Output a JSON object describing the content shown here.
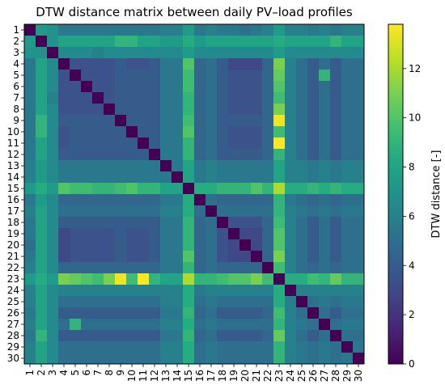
{
  "chart_data": {
    "type": "heatmap",
    "title": "DTW distance matrix between daily PV–load profiles",
    "row_labels": [
      "1",
      "2",
      "3",
      "4",
      "5",
      "6",
      "7",
      "8",
      "9",
      "10",
      "11",
      "12",
      "13",
      "14",
      "15",
      "16",
      "17",
      "18",
      "19",
      "20",
      "21",
      "22",
      "23",
      "24",
      "25",
      "26",
      "27",
      "28",
      "29",
      "30"
    ],
    "col_labels": [
      "1",
      "2",
      "3",
      "4",
      "5",
      "6",
      "7",
      "8",
      "9",
      "10",
      "11",
      "12",
      "13",
      "14",
      "15",
      "16",
      "17",
      "18",
      "19",
      "20",
      "21",
      "22",
      "23",
      "24",
      "25",
      "26",
      "27",
      "28",
      "29",
      "30"
    ],
    "colormap": "viridis",
    "colorbar": {
      "label": "DTW distance [-]",
      "range": [
        0,
        13.8
      ],
      "ticks": [
        "0",
        "2",
        "4",
        "6",
        "8",
        "10",
        "12"
      ]
    },
    "values": [
      [
        0,
        7.5,
        7.0,
        5.5,
        5.5,
        5.5,
        5.5,
        5.5,
        5.5,
        5.5,
        5.5,
        5.5,
        6.0,
        6.0,
        7.5,
        5.5,
        6.0,
        5.5,
        5.5,
        5.0,
        5.5,
        6.0,
        7.5,
        6.0,
        6.0,
        5.5,
        6.0,
        5.5,
        6.0,
        6.0
      ],
      [
        7.5,
        0,
        7.0,
        8.0,
        8.0,
        8.0,
        8.0,
        8.0,
        9.0,
        9.0,
        8.0,
        8.0,
        7.5,
        7.5,
        8.5,
        7.5,
        8.0,
        8.0,
        8.0,
        8.0,
        8.0,
        8.0,
        8.5,
        8.0,
        8.0,
        8.0,
        8.0,
        9.0,
        8.0,
        8.0
      ],
      [
        7.0,
        7.0,
        0,
        6.5,
        6.5,
        6.5,
        6.0,
        6.5,
        6.5,
        6.5,
        6.5,
        6.5,
        6.5,
        6.5,
        7.5,
        6.5,
        6.5,
        6.5,
        6.5,
        6.5,
        6.5,
        6.5,
        7.5,
        6.5,
        6.5,
        6.5,
        6.5,
        6.5,
        6.5,
        6.5
      ],
      [
        5.5,
        8.0,
        6.5,
        0,
        3.5,
        3.5,
        3.5,
        3.5,
        4.0,
        3.5,
        3.5,
        4.0,
        5.5,
        5.5,
        10.0,
        4.5,
        5.0,
        4.0,
        3.0,
        3.0,
        3.0,
        4.5,
        11.0,
        6.0,
        5.0,
        4.0,
        5.0,
        4.0,
        5.0,
        5.0
      ],
      [
        5.5,
        8.0,
        6.5,
        3.5,
        0,
        3.5,
        3.5,
        3.5,
        4.0,
        4.0,
        4.0,
        4.0,
        5.5,
        5.5,
        9.5,
        4.5,
        5.0,
        4.0,
        3.5,
        3.5,
        3.5,
        4.5,
        10.5,
        6.0,
        5.0,
        4.0,
        9.0,
        4.0,
        5.0,
        5.0
      ],
      [
        5.5,
        8.0,
        6.5,
        3.5,
        3.5,
        0,
        3.5,
        3.5,
        4.0,
        4.0,
        4.0,
        4.0,
        5.5,
        5.5,
        9.5,
        4.5,
        5.0,
        4.0,
        3.5,
        3.5,
        3.5,
        4.5,
        10.0,
        6.0,
        5.0,
        4.0,
        5.0,
        4.0,
        5.0,
        5.0
      ],
      [
        5.5,
        8.0,
        6.0,
        3.5,
        3.5,
        3.5,
        0,
        3.5,
        4.0,
        4.0,
        4.0,
        4.0,
        5.5,
        5.5,
        9.0,
        4.5,
        5.0,
        4.0,
        3.5,
        3.5,
        3.5,
        4.5,
        9.5,
        6.0,
        5.0,
        4.0,
        5.0,
        4.0,
        5.0,
        5.0
      ],
      [
        5.5,
        8.0,
        6.5,
        3.5,
        3.5,
        3.5,
        3.5,
        0,
        4.0,
        4.0,
        4.0,
        4.0,
        5.5,
        5.5,
        9.0,
        4.5,
        5.0,
        4.0,
        3.5,
        3.5,
        3.5,
        4.5,
        11.0,
        6.0,
        5.0,
        4.0,
        5.0,
        4.0,
        5.0,
        5.0
      ],
      [
        5.5,
        9.0,
        6.5,
        4.0,
        4.0,
        4.0,
        4.0,
        4.0,
        0,
        4.0,
        4.0,
        4.0,
        5.5,
        5.5,
        9.5,
        4.5,
        5.0,
        4.0,
        4.0,
        4.0,
        4.0,
        4.5,
        13.5,
        6.0,
        5.0,
        4.0,
        5.0,
        4.0,
        5.0,
        5.0
      ],
      [
        5.5,
        9.0,
        6.5,
        3.5,
        4.0,
        4.0,
        4.0,
        4.0,
        4.0,
        0,
        4.0,
        4.0,
        5.5,
        5.5,
        10.0,
        4.5,
        5.0,
        4.0,
        3.5,
        3.5,
        3.5,
        4.5,
        9.5,
        6.0,
        5.0,
        4.0,
        5.0,
        4.0,
        5.0,
        5.0
      ],
      [
        5.5,
        8.0,
        6.5,
        3.5,
        4.0,
        4.0,
        4.0,
        4.0,
        4.0,
        4.0,
        0,
        4.0,
        5.5,
        5.5,
        9.0,
        4.5,
        5.0,
        4.0,
        3.5,
        3.5,
        3.5,
        4.5,
        13.8,
        6.0,
        5.0,
        4.0,
        5.0,
        4.0,
        5.0,
        5.0
      ],
      [
        5.5,
        8.0,
        6.5,
        4.0,
        4.0,
        4.0,
        4.0,
        4.0,
        4.0,
        4.0,
        4.0,
        0,
        5.5,
        5.5,
        9.0,
        4.5,
        5.0,
        4.0,
        4.0,
        4.0,
        4.0,
        4.5,
        9.0,
        6.0,
        5.0,
        4.0,
        5.0,
        4.0,
        5.0,
        5.0
      ],
      [
        6.0,
        7.5,
        6.5,
        5.5,
        5.5,
        5.5,
        5.5,
        5.5,
        5.5,
        5.5,
        5.5,
        5.5,
        0,
        5.5,
        8.0,
        5.5,
        6.0,
        5.5,
        5.5,
        5.5,
        5.5,
        5.5,
        8.0,
        6.0,
        6.0,
        5.5,
        6.0,
        5.5,
        6.0,
        6.0
      ],
      [
        6.0,
        7.5,
        6.5,
        5.5,
        5.5,
        5.5,
        5.5,
        5.5,
        5.5,
        5.5,
        5.5,
        5.5,
        5.5,
        0,
        8.0,
        5.5,
        6.0,
        5.5,
        5.5,
        5.5,
        5.5,
        5.5,
        8.0,
        6.0,
        6.0,
        5.5,
        6.0,
        5.5,
        6.0,
        6.0
      ],
      [
        7.5,
        8.5,
        7.5,
        10.0,
        9.5,
        9.5,
        9.0,
        9.0,
        9.5,
        10.0,
        9.0,
        9.0,
        8.0,
        8.0,
        0,
        8.5,
        8.5,
        9.0,
        9.0,
        9.0,
        10.0,
        9.0,
        12.0,
        8.5,
        8.5,
        9.0,
        8.5,
        9.0,
        8.5,
        8.5
      ],
      [
        5.5,
        7.5,
        6.5,
        4.5,
        4.5,
        4.5,
        4.5,
        4.5,
        4.5,
        4.5,
        4.5,
        4.5,
        5.5,
        5.5,
        8.5,
        0,
        5.0,
        4.5,
        4.5,
        4.5,
        4.5,
        4.5,
        9.0,
        5.5,
        5.0,
        4.5,
        5.0,
        4.5,
        5.0,
        5.0
      ],
      [
        6.0,
        8.0,
        6.5,
        5.0,
        5.0,
        5.0,
        5.0,
        5.0,
        5.0,
        5.0,
        5.0,
        5.0,
        6.0,
        6.0,
        8.5,
        5.0,
        0,
        5.0,
        5.0,
        5.0,
        5.0,
        5.0,
        9.0,
        6.0,
        5.5,
        5.0,
        5.5,
        5.0,
        5.5,
        5.5
      ],
      [
        5.5,
        8.0,
        6.5,
        4.0,
        4.0,
        4.0,
        4.0,
        4.0,
        4.0,
        4.0,
        4.0,
        4.0,
        5.5,
        5.5,
        9.0,
        4.5,
        5.0,
        0,
        3.5,
        3.5,
        3.5,
        4.5,
        9.5,
        6.0,
        5.0,
        4.0,
        5.0,
        4.0,
        5.0,
        5.0
      ],
      [
        5.5,
        8.0,
        6.5,
        3.0,
        3.5,
        3.5,
        3.5,
        3.5,
        4.0,
        3.5,
        3.5,
        4.0,
        5.5,
        5.5,
        9.0,
        4.5,
        5.0,
        3.5,
        0,
        3.0,
        3.0,
        4.5,
        10.0,
        6.0,
        5.0,
        4.0,
        5.0,
        4.0,
        5.0,
        5.0
      ],
      [
        5.0,
        8.0,
        6.5,
        3.0,
        3.5,
        3.5,
        3.5,
        3.5,
        4.0,
        3.5,
        3.5,
        4.0,
        5.5,
        5.5,
        9.0,
        4.5,
        5.0,
        3.5,
        3.0,
        0,
        3.0,
        4.5,
        10.0,
        6.0,
        5.0,
        4.0,
        5.0,
        4.0,
        5.0,
        5.0
      ],
      [
        5.5,
        8.0,
        6.5,
        3.0,
        3.5,
        3.5,
        3.5,
        3.5,
        4.0,
        3.5,
        3.5,
        4.0,
        5.5,
        5.5,
        10.0,
        4.5,
        5.0,
        3.5,
        3.0,
        3.0,
        0,
        4.5,
        11.0,
        6.0,
        5.0,
        4.0,
        5.0,
        4.0,
        5.0,
        5.0
      ],
      [
        6.0,
        8.0,
        6.5,
        4.5,
        4.5,
        4.5,
        4.5,
        4.5,
        4.5,
        4.5,
        4.5,
        4.5,
        5.5,
        5.5,
        9.0,
        4.5,
        5.0,
        4.5,
        4.5,
        4.5,
        4.5,
        0,
        9.5,
        6.0,
        5.0,
        4.5,
        5.0,
        4.5,
        5.0,
        5.0
      ],
      [
        7.5,
        8.5,
        7.5,
        11.0,
        10.5,
        10.0,
        9.5,
        11.0,
        13.5,
        9.5,
        13.8,
        9.0,
        8.0,
        8.0,
        12.0,
        9.0,
        9.0,
        9.5,
        10.0,
        10.0,
        11.0,
        9.5,
        0,
        8.5,
        8.5,
        9.5,
        9.0,
        10.5,
        9.0,
        9.0
      ],
      [
        6.0,
        8.0,
        6.5,
        6.0,
        6.0,
        6.0,
        6.0,
        6.0,
        6.0,
        6.0,
        6.0,
        6.0,
        6.0,
        6.0,
        8.5,
        5.5,
        6.0,
        6.0,
        6.0,
        6.0,
        6.0,
        6.0,
        8.5,
        0,
        6.0,
        6.0,
        6.0,
        6.0,
        6.0,
        6.0
      ],
      [
        6.0,
        8.0,
        6.5,
        5.0,
        5.0,
        5.0,
        5.0,
        5.0,
        5.0,
        5.0,
        5.0,
        5.0,
        6.0,
        6.0,
        8.5,
        5.0,
        5.5,
        5.0,
        5.0,
        5.0,
        5.0,
        5.0,
        8.5,
        6.0,
        0,
        5.0,
        5.5,
        5.0,
        5.5,
        5.5
      ],
      [
        5.5,
        8.0,
        6.5,
        4.0,
        4.0,
        4.0,
        4.0,
        4.0,
        4.0,
        4.0,
        4.0,
        4.0,
        5.5,
        5.5,
        9.0,
        4.5,
        5.0,
        4.0,
        4.0,
        4.0,
        4.0,
        4.5,
        9.5,
        6.0,
        5.0,
        0,
        5.0,
        4.0,
        5.0,
        5.0
      ],
      [
        6.0,
        8.0,
        6.5,
        5.0,
        9.0,
        5.0,
        5.0,
        5.0,
        5.0,
        5.0,
        5.0,
        5.0,
        6.0,
        6.0,
        8.5,
        5.0,
        5.5,
        5.0,
        5.0,
        5.0,
        5.0,
        5.0,
        9.0,
        6.0,
        5.5,
        5.0,
        0,
        5.0,
        5.5,
        5.5
      ],
      [
        5.5,
        9.0,
        6.5,
        4.0,
        4.0,
        4.0,
        4.0,
        4.0,
        4.0,
        4.0,
        4.0,
        4.0,
        5.5,
        5.5,
        9.0,
        4.5,
        5.0,
        4.0,
        4.0,
        4.0,
        4.0,
        4.5,
        10.5,
        6.0,
        5.0,
        4.0,
        5.0,
        0,
        5.0,
        5.0
      ],
      [
        6.0,
        8.0,
        6.5,
        5.0,
        5.0,
        5.0,
        5.0,
        5.0,
        5.0,
        5.0,
        5.0,
        5.0,
        6.0,
        6.0,
        8.5,
        5.0,
        5.5,
        5.0,
        5.0,
        5.0,
        5.0,
        5.0,
        9.0,
        6.0,
        5.5,
        5.0,
        5.5,
        5.0,
        0,
        5.5
      ],
      [
        6.0,
        8.0,
        6.5,
        5.0,
        5.0,
        5.0,
        5.0,
        5.0,
        5.0,
        5.0,
        5.0,
        5.0,
        6.0,
        6.0,
        8.5,
        5.0,
        5.5,
        5.0,
        5.0,
        5.0,
        5.0,
        5.0,
        9.0,
        6.0,
        5.5,
        5.0,
        5.5,
        5.0,
        5.5,
        0
      ]
    ]
  }
}
